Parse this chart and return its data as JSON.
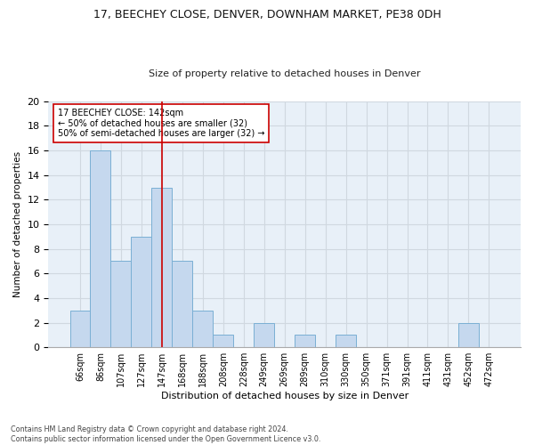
{
  "title_line1": "17, BEECHEY CLOSE, DENVER, DOWNHAM MARKET, PE38 0DH",
  "title_line2": "Size of property relative to detached houses in Denver",
  "xlabel": "Distribution of detached houses by size in Denver",
  "ylabel": "Number of detached properties",
  "bar_color": "#c5d8ee",
  "bar_edge_color": "#7aafd4",
  "categories": [
    "66sqm",
    "86sqm",
    "107sqm",
    "127sqm",
    "147sqm",
    "168sqm",
    "188sqm",
    "208sqm",
    "228sqm",
    "249sqm",
    "269sqm",
    "289sqm",
    "310sqm",
    "330sqm",
    "350sqm",
    "371sqm",
    "391sqm",
    "411sqm",
    "431sqm",
    "452sqm",
    "472sqm"
  ],
  "values": [
    3,
    16,
    7,
    9,
    13,
    7,
    3,
    1,
    0,
    2,
    0,
    1,
    0,
    1,
    0,
    0,
    0,
    0,
    0,
    2,
    0
  ],
  "vline_x": 4,
  "vline_color": "#cc0000",
  "annotation_text": "17 BEECHEY CLOSE: 142sqm\n← 50% of detached houses are smaller (32)\n50% of semi-detached houses are larger (32) →",
  "annotation_box_color": "#ffffff",
  "annotation_box_edge_color": "#cc0000",
  "ylim": [
    0,
    20
  ],
  "yticks": [
    0,
    2,
    4,
    6,
    8,
    10,
    12,
    14,
    16,
    18,
    20
  ],
  "grid_color": "#d0d8e0",
  "bg_color": "#e8f0f8",
  "footnote": "Contains HM Land Registry data © Crown copyright and database right 2024.\nContains public sector information licensed under the Open Government Licence v3.0."
}
